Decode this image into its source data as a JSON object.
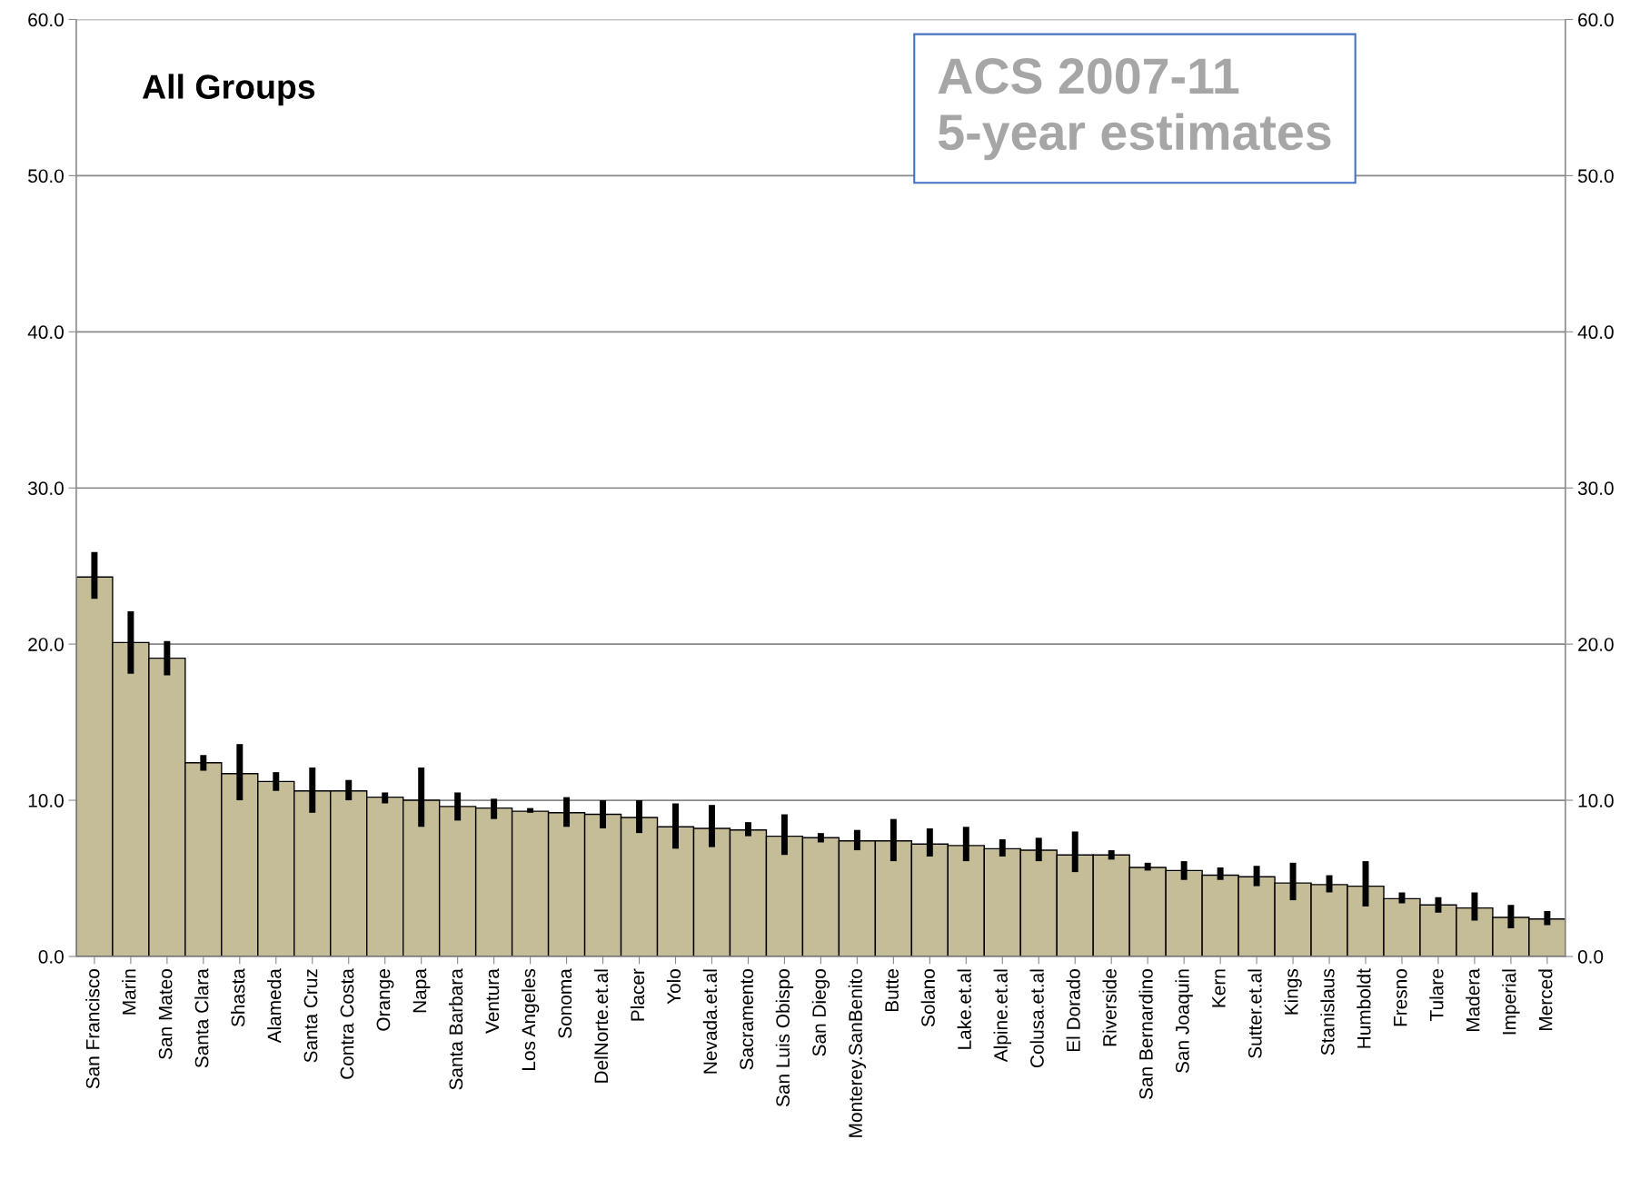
{
  "chart_data": {
    "type": "bar",
    "title": "All Groups",
    "annotations": [
      "ACS 2007-11\n5-year estimates"
    ],
    "categories": [
      "San Francisco",
      "Marin",
      "San Mateo",
      "Santa Clara",
      "Shasta",
      "Alameda",
      "Santa Cruz",
      "Contra Costa",
      "Orange",
      "Napa",
      "Santa Barbara",
      "Ventura",
      "Los Angeles",
      "Sonoma",
      "DelNorte.et.al",
      "Placer",
      "Yolo",
      "Nevada.et.al",
      "Sacramento",
      "San Luis Obispo",
      "San Diego",
      "Monterey.SanBenito",
      "Butte",
      "Solano",
      "Lake.et.al",
      "Alpine.et.al",
      "Colusa.et.al",
      "El Dorado",
      "Riverside",
      "San Bernardino",
      "San Joaquin",
      "Kern",
      "Sutter.et.al",
      "Kings",
      "Stanislaus",
      "Humboldt",
      "Fresno",
      "Tulare",
      "Madera",
      "Imperial",
      "Merced"
    ],
    "values": [
      24.3,
      20.1,
      19.1,
      12.4,
      11.7,
      11.2,
      10.6,
      10.6,
      10.2,
      10.0,
      9.6,
      9.5,
      9.3,
      9.2,
      9.1,
      8.9,
      8.3,
      8.2,
      8.1,
      7.7,
      7.6,
      7.4,
      7.4,
      7.2,
      7.1,
      6.9,
      6.8,
      6.5,
      6.5,
      5.7,
      5.5,
      5.2,
      5.1,
      4.7,
      4.6,
      4.5,
      3.7,
      3.3,
      3.1,
      2.5,
      2.4
    ],
    "errors": [
      [
        22.9,
        25.9
      ],
      [
        18.1,
        22.1
      ],
      [
        18.0,
        20.2
      ],
      [
        11.9,
        12.9
      ],
      [
        10.0,
        13.6
      ],
      [
        10.6,
        11.8
      ],
      [
        9.2,
        12.1
      ],
      [
        10.0,
        11.3
      ],
      [
        9.8,
        10.5
      ],
      [
        8.3,
        12.1
      ],
      [
        8.7,
        10.5
      ],
      [
        8.8,
        10.1
      ],
      [
        9.2,
        9.5
      ],
      [
        8.3,
        10.2
      ],
      [
        8.2,
        10.0
      ],
      [
        7.9,
        10.0
      ],
      [
        6.9,
        9.8
      ],
      [
        7.0,
        9.7
      ],
      [
        7.7,
        8.6
      ],
      [
        6.5,
        9.1
      ],
      [
        7.3,
        7.9
      ],
      [
        6.8,
        8.1
      ],
      [
        6.1,
        8.8
      ],
      [
        6.4,
        8.2
      ],
      [
        6.1,
        8.3
      ],
      [
        6.4,
        7.5
      ],
      [
        6.1,
        7.6
      ],
      [
        5.4,
        8.0
      ],
      [
        6.2,
        6.8
      ],
      [
        5.5,
        6.0
      ],
      [
        4.9,
        6.1
      ],
      [
        4.9,
        5.7
      ],
      [
        4.5,
        5.8
      ],
      [
        3.6,
        6.0
      ],
      [
        4.1,
        5.2
      ],
      [
        3.2,
        6.1
      ],
      [
        3.4,
        4.1
      ],
      [
        2.8,
        3.8
      ],
      [
        2.3,
        4.1
      ],
      [
        1.8,
        3.3
      ],
      [
        2.0,
        2.9
      ]
    ],
    "color": "#c4bd97",
    "ylim": [
      0,
      60
    ],
    "yticks": [
      {
        "value": 0,
        "label": "0.0"
      },
      {
        "value": 10,
        "label": "10.0"
      },
      {
        "value": 20,
        "label": "20.0"
      },
      {
        "value": 30,
        "label": "30.0"
      },
      {
        "value": 40,
        "label": "40.0"
      },
      {
        "value": 50,
        "label": "50.0"
      },
      {
        "value": 60,
        "label": "60.0"
      }
    ],
    "y2lim": [
      0,
      60
    ],
    "y2ticks": [
      {
        "value": 0,
        "label": "0.0"
      },
      {
        "value": 10,
        "label": "10.0"
      },
      {
        "value": 20,
        "label": "20.0"
      },
      {
        "value": 30,
        "label": "30.0"
      },
      {
        "value": 40,
        "label": "40.0"
      },
      {
        "value": 50,
        "label": "50.0"
      },
      {
        "value": 60,
        "label": "60.0"
      }
    ],
    "grid": "y"
  }
}
